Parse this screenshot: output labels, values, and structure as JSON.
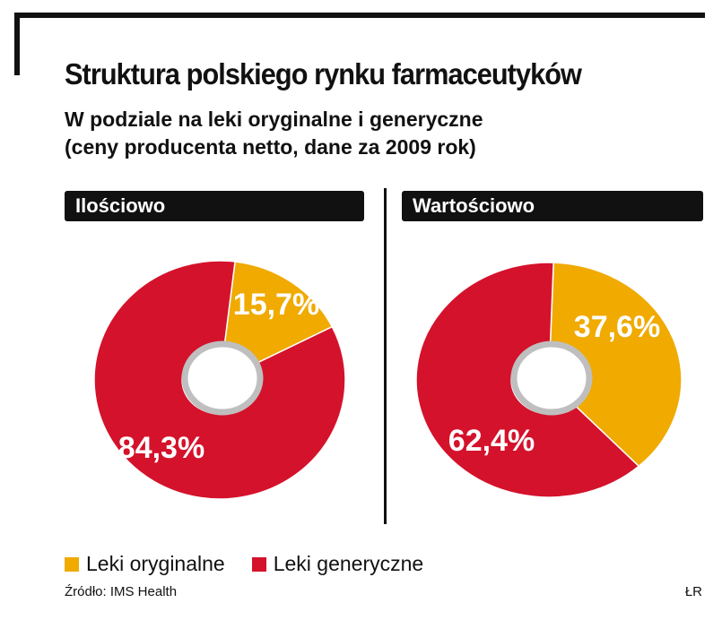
{
  "title": "Struktura polskiego rynku farmaceutyków",
  "subtitle_line1": "W podziale na leki oryginalne i generyczne",
  "subtitle_line2": "(ceny producenta netto, dane za 2009 rok)",
  "colors": {
    "original": "#F0AA00",
    "generic": "#D4122B"
  },
  "chart_data": [
    {
      "type": "pie",
      "title": "Ilościowo",
      "categories": [
        "Leki oryginalne",
        "Leki generyczne"
      ],
      "values": [
        15.7,
        84.3
      ],
      "value_labels": [
        "15,7%",
        "84,3%"
      ]
    },
    {
      "type": "pie",
      "title": "Wartościowo",
      "categories": [
        "Leki oryginalne",
        "Leki generyczne"
      ],
      "values": [
        37.6,
        62.4
      ],
      "value_labels": [
        "37,6%",
        "62,4%"
      ]
    }
  ],
  "legend": {
    "items": [
      {
        "label": "Leki oryginalne",
        "color": "#F0AA00"
      },
      {
        "label": "Leki generyczne",
        "color": "#D4122B"
      }
    ],
    "placement": "bottom"
  },
  "source": "Źródło: IMS Health",
  "credit": "ŁR"
}
